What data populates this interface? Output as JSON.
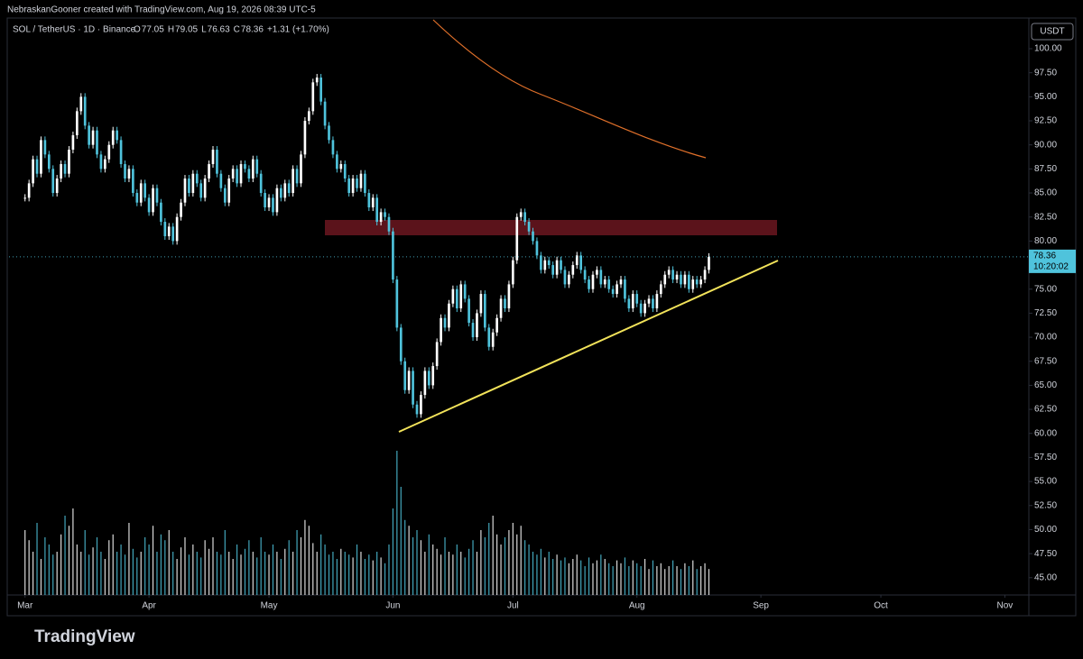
{
  "header": {
    "credit": "NebraskanGooner created with TradingView.com, Aug 19, 2026 08:39 UTC-5",
    "symbol": "SOL / TetherUS · 1D · Binance",
    "ohlc": [
      {
        "label": "O",
        "value": 77.05
      },
      {
        "label": "H",
        "value": 79.05
      },
      {
        "label": "L",
        "value": 76.63
      },
      {
        "label": "C",
        "value": 78.36
      }
    ],
    "change": "+1.31 (+1.70%)"
  },
  "chart_data": {
    "type": "candlestick",
    "currency": "USDT",
    "countdown": "10:20:02",
    "up_color": "#ffffff",
    "down_color": "#4fc3dc",
    "values": [
      84.5,
      86.0,
      88.5,
      87.0,
      90.5,
      89.0,
      87.5,
      85.0,
      86.5,
      88.0,
      87.0,
      89.5,
      91.0,
      93.5,
      95.0,
      92.0,
      90.0,
      91.5,
      89.0,
      87.5,
      88.5,
      90.0,
      91.5,
      90.5,
      88.0,
      86.5,
      87.5,
      85.0,
      84.0,
      86.0,
      84.5,
      83.0,
      85.5,
      84.0,
      82.0,
      80.5,
      81.5,
      80.0,
      82.5,
      84.0,
      86.5,
      85.0,
      87.0,
      86.0,
      84.5,
      86.5,
      88.0,
      89.5,
      87.0,
      85.5,
      84.0,
      86.5,
      87.5,
      86.0,
      88.0,
      87.5,
      86.5,
      88.5,
      87.0,
      85.0,
      83.5,
      84.5,
      83.0,
      85.5,
      84.5,
      86.0,
      85.0,
      87.5,
      86.0,
      89.0,
      92.5,
      93.5,
      96.5,
      97.0,
      94.5,
      92.0,
      90.5,
      89.0,
      87.5,
      88.0,
      86.5,
      85.0,
      86.5,
      85.5,
      87.0,
      85.0,
      83.5,
      84.5,
      82.0,
      83.0,
      82.5,
      81.0,
      76.0,
      71.0,
      67.5,
      64.5,
      66.5,
      63.0,
      62.0,
      64.0,
      66.5,
      65.0,
      67.0,
      69.5,
      72.0,
      71.0,
      73.5,
      75.0,
      73.0,
      75.5,
      74.0,
      71.5,
      70.0,
      72.5,
      74.5,
      71.0,
      69.0,
      70.5,
      72.0,
      74.0,
      73.0,
      75.5,
      78.0,
      82.5,
      83.0,
      82.0,
      81.0,
      80.0,
      78.5,
      77.0,
      78.0,
      77.5,
      76.5,
      78.0,
      77.0,
      75.5,
      76.5,
      77.5,
      78.5,
      77.0,
      76.0,
      75.0,
      76.5,
      77.0,
      75.5,
      76.0,
      75.0,
      74.5,
      75.5,
      76.0,
      74.0,
      73.0,
      74.5,
      73.5,
      72.5,
      73.5,
      74.0,
      73.0,
      74.5,
      75.5,
      76.5,
      77.0,
      76.0,
      76.5,
      75.5,
      76.5,
      75.0,
      76.0,
      75.5,
      76.0,
      77.0,
      78.36
    ],
    "volume": [
      45,
      38,
      30,
      50,
      25,
      40,
      35,
      28,
      30,
      42,
      55,
      48,
      60,
      35,
      30,
      45,
      28,
      33,
      40,
      30,
      25,
      38,
      42,
      30,
      35,
      28,
      50,
      32,
      26,
      30,
      40,
      35,
      48,
      30,
      42,
      38,
      45,
      30,
      25,
      33,
      40,
      28,
      35,
      30,
      26,
      38,
      32,
      40,
      30,
      28,
      45,
      30,
      25,
      35,
      28,
      32,
      38,
      30,
      26,
      40,
      30,
      28,
      35,
      30,
      25,
      32,
      38,
      30,
      45,
      40,
      52,
      48,
      36,
      30,
      42,
      35,
      28,
      30,
      25,
      32,
      30,
      28,
      26,
      35,
      30,
      25,
      28,
      24,
      30,
      26,
      22,
      35,
      60,
      100,
      75,
      52,
      48,
      40,
      45,
      38,
      30,
      42,
      35,
      32,
      28,
      40,
      30,
      28,
      35,
      30,
      26,
      32,
      38,
      30,
      45,
      40,
      50,
      55,
      42,
      35,
      40,
      45,
      50,
      42,
      48,
      38,
      35,
      30,
      28,
      32,
      26,
      30,
      25,
      28,
      24,
      26,
      22,
      25,
      28,
      24,
      20,
      26,
      22,
      24,
      28,
      25,
      22,
      20,
      24,
      22,
      26,
      20,
      24,
      22,
      20,
      25,
      18,
      24,
      20,
      22,
      18,
      20,
      24,
      20,
      18,
      22,
      20,
      24,
      18,
      20,
      22,
      18
    ],
    "xlim": [
      -4,
      251
    ],
    "xticks": [
      {
        "value": 0,
        "label": "Mar"
      },
      {
        "value": 31,
        "label": "Apr"
      },
      {
        "value": 61,
        "label": "May"
      },
      {
        "value": 92,
        "label": "Jun"
      },
      {
        "value": 122,
        "label": "Jul"
      },
      {
        "value": 153,
        "label": "Aug"
      },
      {
        "value": 184,
        "label": "Sep"
      },
      {
        "value": 214,
        "label": "Oct"
      },
      {
        "value": 245,
        "label": "Nov"
      }
    ],
    "ylim": [
      43.2,
      103
    ],
    "yticks": [
      {
        "value": 45,
        "label": "45.00"
      },
      {
        "value": 47.5,
        "label": "47.50"
      },
      {
        "value": 50,
        "label": "50.00"
      },
      {
        "value": 52.5,
        "label": "52.50"
      },
      {
        "value": 55,
        "label": "55.00"
      },
      {
        "value": 57.5,
        "label": "57.50"
      },
      {
        "value": 60,
        "label": "60.00"
      },
      {
        "value": 62.5,
        "label": "62.50"
      },
      {
        "value": 65,
        "label": "65.00"
      },
      {
        "value": 67.5,
        "label": "67.50"
      },
      {
        "value": 70,
        "label": "70.00"
      },
      {
        "value": 72.5,
        "label": "72.50"
      },
      {
        "value": 75,
        "label": "75.00"
      },
      {
        "value": 77.5,
        "label": "77.50"
      },
      {
        "value": 80,
        "label": "80.00"
      },
      {
        "value": 82.5,
        "label": "82.50"
      },
      {
        "value": 85,
        "label": "85.00"
      },
      {
        "value": 87.5,
        "label": "87.50"
      },
      {
        "value": 90,
        "label": "90.00"
      },
      {
        "value": 92.5,
        "label": "92.50"
      },
      {
        "value": 95,
        "label": "95.00"
      },
      {
        "value": 97.5,
        "label": "97.50"
      },
      {
        "value": 100,
        "label": "100.00"
      }
    ]
  },
  "footer": {
    "logo": "TradingView"
  }
}
